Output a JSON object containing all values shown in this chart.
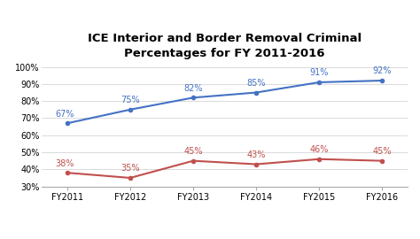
{
  "title": "ICE Interior and Border Removal Criminal\nPercentages for FY 2011-2016",
  "categories": [
    "FY2011",
    "FY2012",
    "FY2013",
    "FY2014",
    "FY2015",
    "FY2016"
  ],
  "interior_values": [
    67,
    75,
    82,
    85,
    91,
    92
  ],
  "border_values": [
    38,
    35,
    45,
    43,
    46,
    45
  ],
  "interior_labels": [
    "67%",
    "75%",
    "82%",
    "85%",
    "91%",
    "92%"
  ],
  "border_labels": [
    "38%",
    "35%",
    "45%",
    "43%",
    "46%",
    "45%"
  ],
  "interior_color": "#4472C4",
  "border_color": "#C0504D",
  "background_color": "#ffffff",
  "ylim": [
    30,
    100
  ],
  "yticks": [
    30,
    40,
    50,
    60,
    70,
    80,
    90,
    100
  ],
  "ytick_labels": [
    "30%",
    "40%",
    "50%",
    "60%",
    "70%",
    "80%",
    "90%",
    "100%"
  ],
  "title_fontsize": 9.5,
  "label_fontsize": 7,
  "tick_fontsize": 7,
  "legend_fontsize": 6,
  "line_width": 1.5,
  "marker": "o",
  "marker_size": 3
}
